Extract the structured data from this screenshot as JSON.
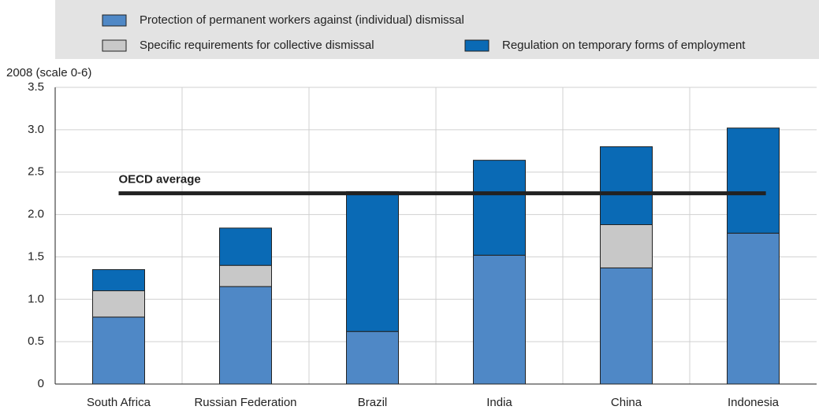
{
  "chart_data": {
    "type": "stacked-bar",
    "y_label": "2008 (scale 0-6)",
    "categories": [
      "South Africa",
      "Russian Federation",
      "Brazil",
      "India",
      "China",
      "Indonesia"
    ],
    "series": [
      {
        "name": "Protection of permanent workers against (individual) dismissal",
        "color": "#4f88c6",
        "values": [
          0.79,
          1.15,
          0.62,
          1.52,
          1.37,
          1.78
        ]
      },
      {
        "name": "Specific requirements for collective dismissal",
        "color": "#c8c8c8",
        "values": [
          0.31,
          0.25,
          0,
          0,
          0.51,
          0
        ]
      },
      {
        "name": "Regulation on temporary forms of employment",
        "color": "#0a6ab5",
        "values": [
          0.25,
          0.44,
          1.65,
          1.12,
          0.92,
          1.24
        ]
      }
    ],
    "reference_line": {
      "label": "OECD average",
      "value": 2.25,
      "color": "#222222"
    },
    "ylim": [
      0,
      3.5
    ],
    "yticks": [
      0,
      0.5,
      {
        "value": 1,
        "label": "1.0"
      },
      1.5,
      {
        "value": 2,
        "label": "2.0"
      },
      2.5,
      {
        "value": 3,
        "label": "3.0"
      },
      3.5
    ],
    "grid": true
  }
}
